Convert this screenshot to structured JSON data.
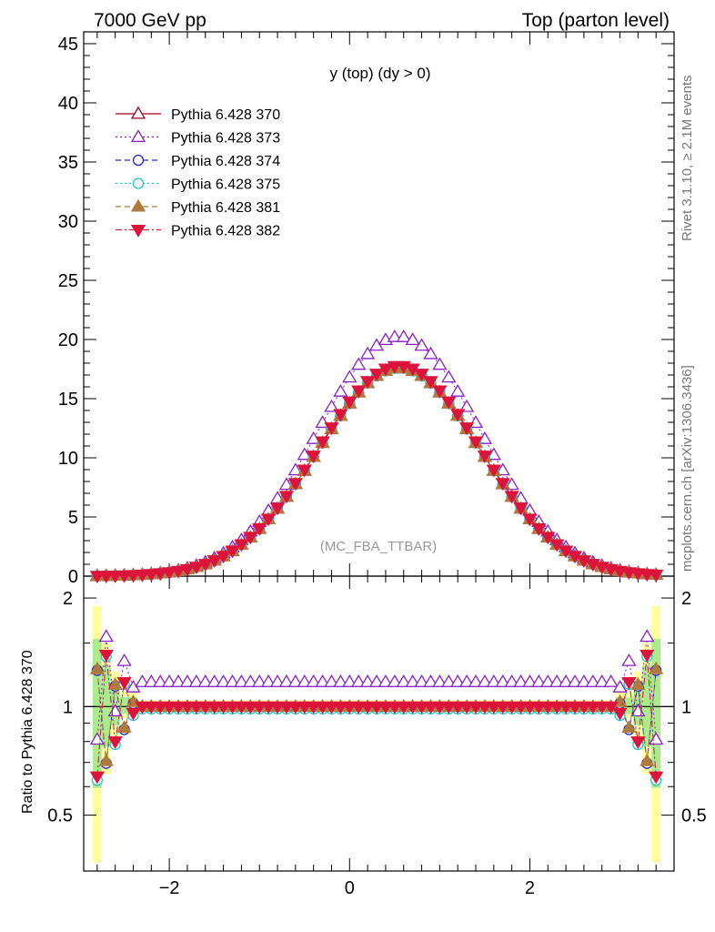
{
  "header": {
    "left": "7000 GeV pp",
    "right": "Top (parton level)"
  },
  "side_text": {
    "rivet": "Rivet 3.1.10, ≥ 2.1M events",
    "mcplots": "mcplots.cern.ch [arXiv:1306.3436]"
  },
  "plot_title": "y (top) (dy > 0)",
  "watermark": "(MC_FBA_TTBAR)",
  "ratio_ylabel": "Ratio to Pythia 6.428 370",
  "colors": {
    "s370": "#a0001e",
    "s373": "#8a1ec8",
    "s374": "#1e28c8",
    "s375": "#1ec8c8",
    "s381": "#b07a3c",
    "s382": "#dc143c"
  },
  "chart_data": {
    "type": "line",
    "main": {
      "xlim": [
        -2.95,
        3.6
      ],
      "ylim": [
        0,
        46
      ],
      "yticks": [
        0,
        5,
        10,
        15,
        20,
        25,
        30,
        35,
        40,
        45
      ],
      "grid": false,
      "legend_position": "top-left"
    },
    "ratio": {
      "xlim": [
        -2.95,
        3.6
      ],
      "ylim": [
        0.35,
        2.3
      ],
      "yticks": [
        0.5,
        1,
        2
      ],
      "reference": 1
    },
    "xticks": [
      -2,
      0,
      2
    ],
    "xtick_labels": [
      "−2",
      "0",
      "2"
    ],
    "distribution": {
      "peak_x": 0.55,
      "peak_y": 17.6,
      "sigma": 0.9,
      "x_range": [
        -2.8,
        3.4
      ],
      "bin_width": 0.1
    },
    "series": [
      {
        "name": "Pythia 6.428 370",
        "key": "s370",
        "marker": "triangle-up-open",
        "line": "solid",
        "scale": 1.0,
        "ratio": 1.0
      },
      {
        "name": "Pythia 6.428 373",
        "key": "s373",
        "marker": "triangle-up-open",
        "line": "dotted",
        "scale": 1.15,
        "ratio": 1.17
      },
      {
        "name": "Pythia 6.428 374",
        "key": "s374",
        "marker": "circle-open",
        "line": "dashed",
        "scale": 1.0,
        "ratio": 0.99
      },
      {
        "name": "Pythia 6.428 375",
        "key": "s375",
        "marker": "circle-open",
        "line": "dotted",
        "scale": 1.0,
        "ratio": 0.985
      },
      {
        "name": "Pythia 6.428 381",
        "key": "s381",
        "marker": "triangle-up-filled",
        "line": "dashed",
        "scale": 1.0,
        "ratio": 1.0
      },
      {
        "name": "Pythia 6.428 382",
        "key": "s382",
        "marker": "triangle-down-filled",
        "line": "dashdot",
        "scale": 1.01,
        "ratio": 1.0
      }
    ]
  }
}
